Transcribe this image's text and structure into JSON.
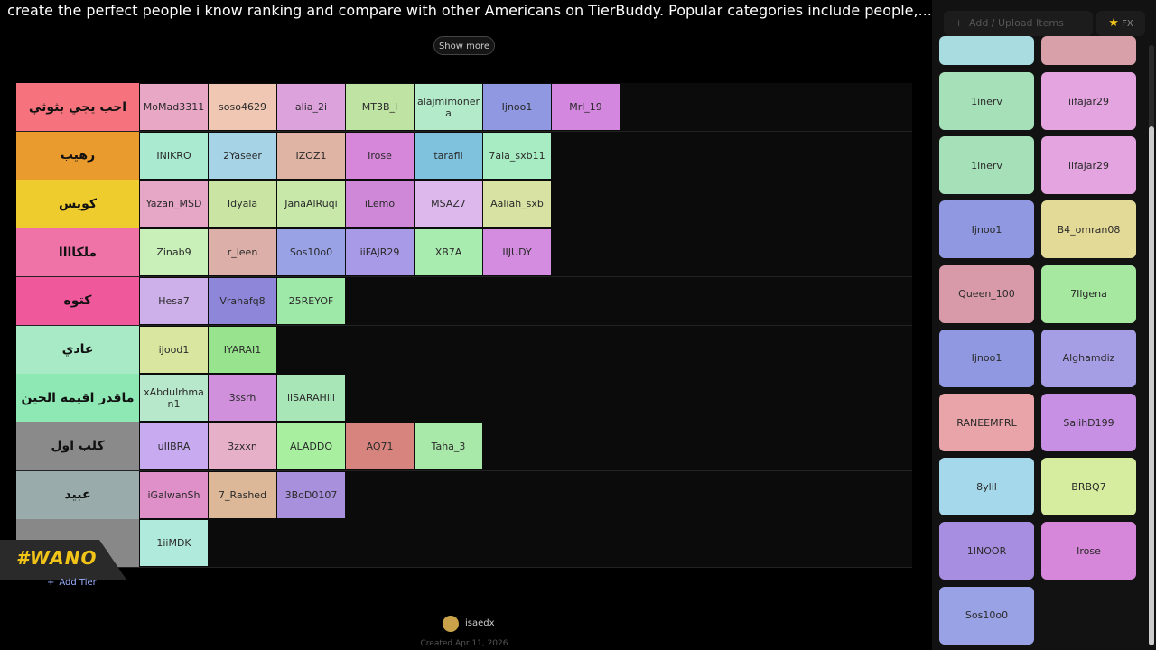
{
  "header": {
    "description": "create the perfect people i know ranking and compare with other Americans on TierBuddy. Popular categories include people,...",
    "show_more": "Show more"
  },
  "tiers": [
    {
      "label": "احب يجي بثوثي",
      "color": "#f6737e",
      "items": [
        {
          "label": "MoMad3311",
          "color": "#e9a7c6"
        },
        {
          "label": "soso4629",
          "color": "#efc7b3"
        },
        {
          "label": "alia_2i",
          "color": "#dca2dc"
        },
        {
          "label": "MT3B_I",
          "color": "#bfe3a3"
        },
        {
          "label": "alajmimonera",
          "color": "#b3eac9"
        },
        {
          "label": "Ijnoo1",
          "color": "#8f98e0"
        },
        {
          "label": "Mrl_19",
          "color": "#d487df"
        }
      ]
    },
    {
      "label": "رهيب",
      "color": "#e99b2e",
      "items": [
        {
          "label": "INIKRO",
          "color": "#a9ead0"
        },
        {
          "label": "2Yaseer",
          "color": "#a6d3e6"
        },
        {
          "label": "IZOZ1",
          "color": "#dfb4a4"
        },
        {
          "label": "Irose",
          "color": "#d687d9"
        },
        {
          "label": "tarafli",
          "color": "#7fc2dd"
        },
        {
          "label": "7ala_sxb11",
          "color": "#a7ecc3"
        }
      ]
    },
    {
      "label": "كويس",
      "color": "#efcc2e",
      "items": [
        {
          "label": "Yazan_MSD",
          "color": "#e6a6c6"
        },
        {
          "label": "Idyala",
          "color": "#c9e4a3"
        },
        {
          "label": "JanaAlRuqi",
          "color": "#c7e8a8"
        },
        {
          "label": "iLemo",
          "color": "#cf88d8"
        },
        {
          "label": "MSAZ7",
          "color": "#dcb8ec"
        },
        {
          "label": "Aaliah_sxb",
          "color": "#d8e3a3"
        }
      ]
    },
    {
      "label": "ملكاااا",
      "color": "#f073a8",
      "items": [
        {
          "label": "Zinab9",
          "color": "#c8f0b8"
        },
        {
          "label": "r_leen",
          "color": "#dcb0a8"
        },
        {
          "label": "Sos10o0",
          "color": "#9aa2e6"
        },
        {
          "label": "iiFAJR29",
          "color": "#a89ae6"
        },
        {
          "label": "XB7A",
          "color": "#a8ecb0"
        },
        {
          "label": "IIJUDY",
          "color": "#d48ce0"
        }
      ]
    },
    {
      "label": "كتوه",
      "color": "#f0589c",
      "items": [
        {
          "label": "Hesa7",
          "color": "#cdb0ea"
        },
        {
          "label": "Vrahafq8",
          "color": "#8e86d8"
        },
        {
          "label": "25REYOF",
          "color": "#9ee8a8"
        }
      ]
    },
    {
      "label": "عادي",
      "color": "#a8e9c6",
      "items": [
        {
          "label": "iJood1",
          "color": "#d8e6a0"
        },
        {
          "label": "IYARAI1",
          "color": "#98e48e"
        }
      ]
    },
    {
      "label": "ماقدر اقيمه الحين",
      "color": "#8ee8b4",
      "items": [
        {
          "label": "xAbdulrhman1",
          "color": "#b8e8cc"
        },
        {
          "label": "3ssrh",
          "color": "#d090dc"
        },
        {
          "label": "iiSARAHiii",
          "color": "#a8e6b8"
        }
      ]
    },
    {
      "label": "كلب اول",
      "color": "#8a8a8a",
      "items": [
        {
          "label": "uIIBRA",
          "color": "#c8aaf0"
        },
        {
          "label": "3zxxn",
          "color": "#e6b0c8"
        },
        {
          "label": "ALADDO",
          "color": "#a8f0a0"
        },
        {
          "label": "AQ71",
          "color": "#d8847e"
        },
        {
          "label": "Taha_3",
          "color": "#a8e8a8"
        }
      ]
    },
    {
      "label": "عبيد",
      "color": "#9aabab",
      "items": [
        {
          "label": "iGalwanSh",
          "color": "#e090c8"
        },
        {
          "label": "7_Rashed",
          "color": "#dcb898"
        },
        {
          "label": "3BoD0107",
          "color": "#a890dc"
        }
      ]
    },
    {
      "color": "#888888",
      "items": [
        {
          "label": "1iiMDK",
          "color": "#b0eadc"
        }
      ]
    }
  ],
  "add_tier": "Add Tier",
  "logo": "#WANO",
  "footer": {
    "author": "isaedx",
    "created": "Created Apr 11, 2026"
  },
  "sidebar": {
    "search": "Add / Upload Items",
    "fx": "FX",
    "items": [
      {
        "label": "1inerv",
        "color": "#a6e0b8"
      },
      {
        "label": "iifajar29",
        "color": "#e4a4e0"
      },
      {
        "label": "1inerv",
        "color": "#a6e0b8"
      },
      {
        "label": "iifajar29",
        "color": "#e4a4e0"
      },
      {
        "label": "Ijnoo1",
        "color": "#8f98e0"
      },
      {
        "label": "B4_omran08",
        "color": "#e4da98"
      },
      {
        "label": "Queen_100",
        "color": "#d89aa8"
      },
      {
        "label": "7Ilgena",
        "color": "#a6e8a0"
      },
      {
        "label": "Ijnoo1",
        "color": "#8f98e0"
      },
      {
        "label": "Alghamdiz",
        "color": "#a59ee4"
      },
      {
        "label": "RANEEMFRL",
        "color": "#e8a4a8"
      },
      {
        "label": "SalihD199",
        "color": "#c890e4"
      },
      {
        "label": "8ylil",
        "color": "#a4d8ea"
      },
      {
        "label": "BRBQ7",
        "color": "#d6ec9e"
      },
      {
        "label": "1INOOR",
        "color": "#a88ee0"
      },
      {
        "label": "Irose",
        "color": "#d687d9"
      },
      {
        "label": "Sos10o0",
        "color": "#9aa2e6"
      }
    ]
  }
}
